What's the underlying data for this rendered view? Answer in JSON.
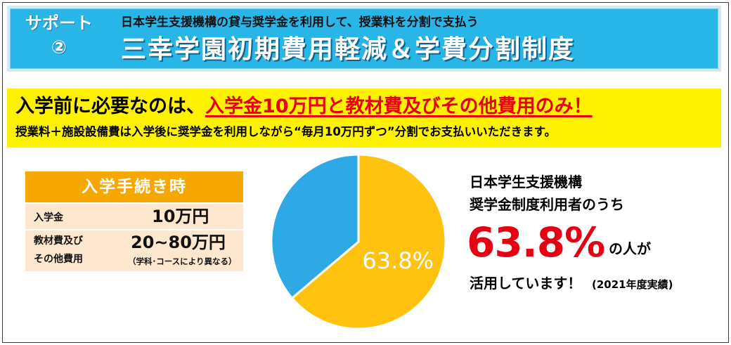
{
  "header": {
    "support_label": "サポート",
    "support_number": "②",
    "subtitle": "日本学生支援機構の貸与奨学金を利用して、授業料を分割で支払う",
    "title": "三幸学園初期費用軽減＆学費分割制度"
  },
  "notice": {
    "line1_prefix": "入学前に必要なのは、",
    "line1_highlight": "入学金10万円と教材費及びその他費用のみ！",
    "line2": "授業料＋施設設備費は入学後に奨学金を利用しながら“毎月10万円ずつ”分割でお支払いいただきます。"
  },
  "enrollment": {
    "heading": "入学手続き時",
    "rows": [
      {
        "label": "入学金",
        "value": "10万円"
      },
      {
        "label_line1": "教材費及び",
        "label_line2": "その他費用",
        "value": "20~80万円",
        "note": "（学科･コースにより異なる）"
      }
    ]
  },
  "stats": {
    "line1": "日本学生支援機構",
    "line2": "奨学金制度利用者のうち",
    "big_percent": "63.8%",
    "percent_suffix": "の人が",
    "line3": "活用しています！",
    "year_note": "(2021年度実績)",
    "colors": {
      "accent_red": "#e60012"
    }
  },
  "chart_data": {
    "type": "pie",
    "slices": [
      {
        "value": 63.8,
        "label": "63.8%",
        "color": "#ffc20e"
      },
      {
        "value": 36.2,
        "label": "",
        "color": "#2fa8e6"
      }
    ],
    "start_angle_deg": 0,
    "direction": "clockwise"
  }
}
